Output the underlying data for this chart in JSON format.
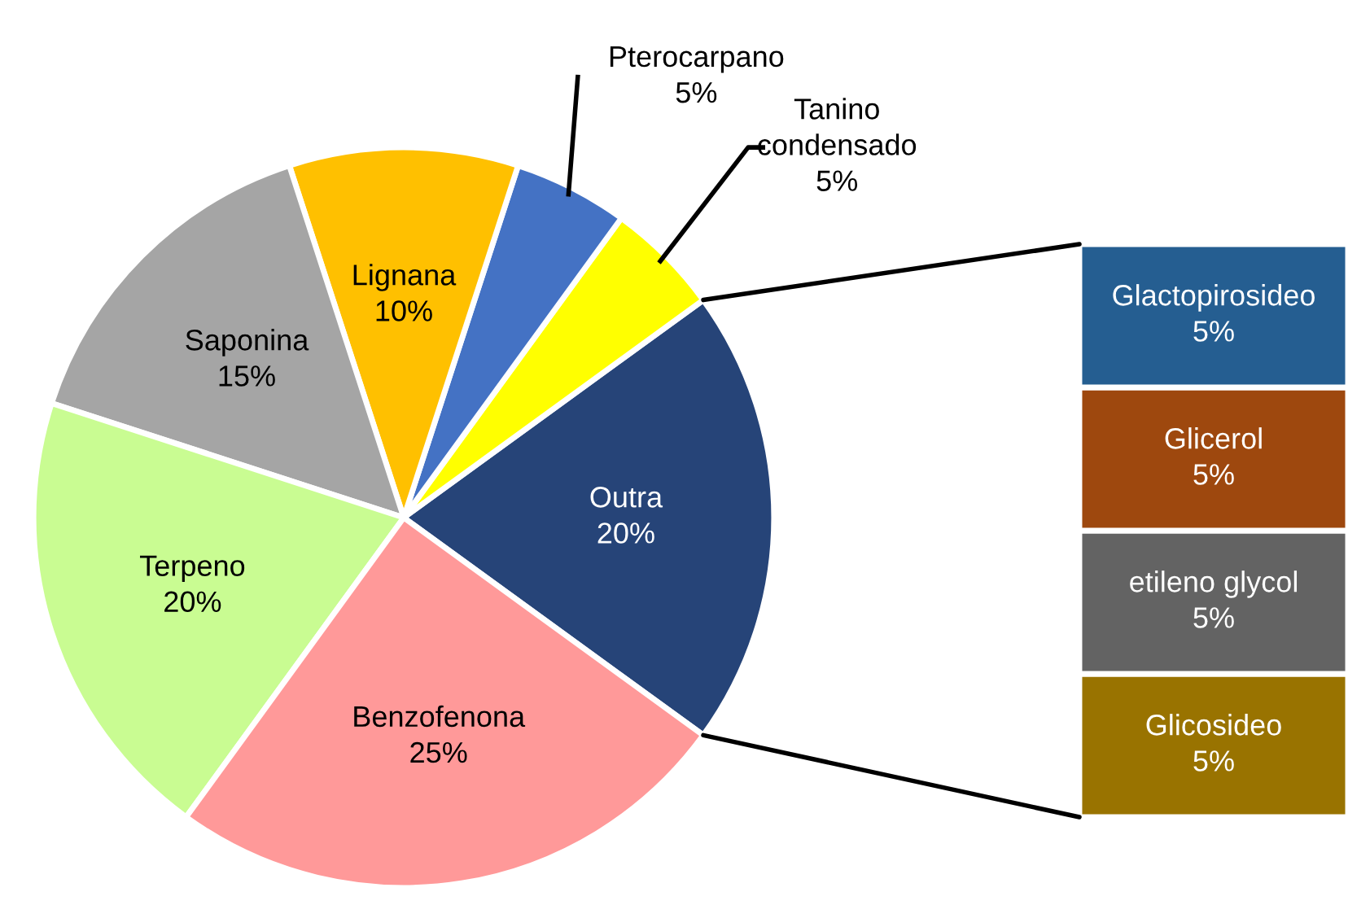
{
  "chart_data": [
    {
      "type": "pie",
      "categories": [
        "Outra",
        "Tanino condensado",
        "Pterocarpano",
        "Lignana",
        "Saponina",
        "Terpeno",
        "Benzofenona"
      ],
      "values": [
        20,
        5,
        5,
        10,
        15,
        20,
        25
      ],
      "colors": [
        "#264478",
        "#ffff00",
        "#4472c4",
        "#ffc000",
        "#a5a5a5",
        "#c9fc92",
        "#ff9999"
      ],
      "value_labels": [
        "20%",
        "5%",
        "5%",
        "10%",
        "15%",
        "20%",
        "25%"
      ]
    },
    {
      "type": "bar",
      "stacked": true,
      "categories": [
        null
      ],
      "series": [
        {
          "name": "Glicosideo",
          "color": "#997300",
          "values": [
            5
          ],
          "value_labels": [
            "5%"
          ]
        },
        {
          "name": "etileno glycol",
          "color": "#636363",
          "values": [
            5
          ],
          "value_labels": [
            "5%"
          ]
        },
        {
          "name": "Glicerol",
          "color": "#9e480e",
          "values": [
            5
          ],
          "value_labels": [
            "5%"
          ]
        },
        {
          "name": "Glactopirosideo",
          "color": "#255e91",
          "values": [
            5
          ],
          "value_labels": [
            "5%"
          ]
        }
      ]
    }
  ]
}
